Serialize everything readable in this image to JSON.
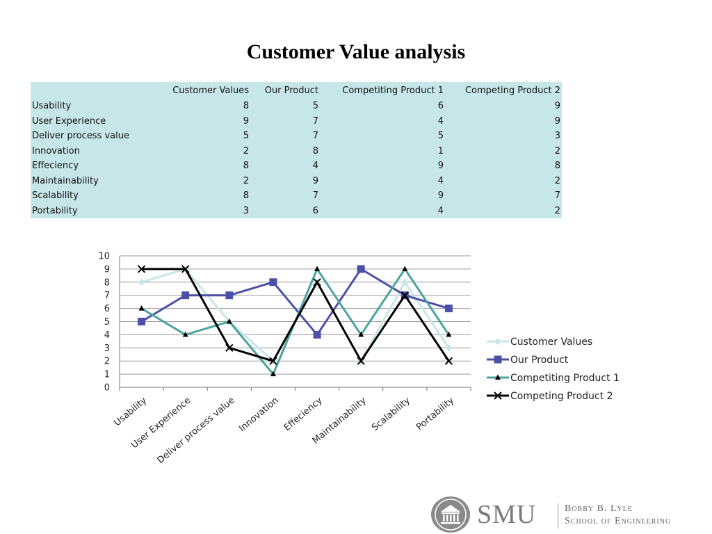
{
  "title": "Customer Value analysis",
  "table": {
    "columns": [
      "",
      "Customer Values",
      "Our Product",
      "Competiting Product 1",
      "Competing Product 2"
    ],
    "rows": [
      [
        "Usability",
        "8",
        "5",
        "6",
        "9"
      ],
      [
        "User Experience",
        "9",
        "7",
        "4",
        "9"
      ],
      [
        "Deliver process value",
        "5",
        "7",
        "5",
        "3"
      ],
      [
        "Innovation",
        "2",
        "8",
        "1",
        "2"
      ],
      [
        "Effeciency",
        "8",
        "4",
        "9",
        "8"
      ],
      [
        "Maintainability",
        "2",
        "9",
        "4",
        "2"
      ],
      [
        "Scalability",
        "8",
        "7",
        "9",
        "7"
      ],
      [
        "Portability",
        "3",
        "6",
        "4",
        "2"
      ]
    ]
  },
  "chart_data": {
    "type": "line",
    "categories": [
      "Usability",
      "User Experience",
      "Deliver process value",
      "Innovation",
      "Effeciency",
      "Maintainability",
      "Scalability",
      "Portability"
    ],
    "series": [
      {
        "name": "Customer Values",
        "values": [
          8,
          9,
          5,
          2,
          8,
          2,
          8,
          3
        ],
        "color": "#c8e6e8",
        "marker": "diamond"
      },
      {
        "name": "Our Product",
        "values": [
          5,
          7,
          7,
          8,
          4,
          9,
          7,
          6
        ],
        "color": "#4b4fa8",
        "marker": "square"
      },
      {
        "name": "Competiting Product 1",
        "values": [
          6,
          4,
          5,
          1,
          9,
          4,
          9,
          4
        ],
        "color": "#4aa3a0",
        "marker": "triangle"
      },
      {
        "name": "Competing Product 2",
        "values": [
          9,
          9,
          3,
          2,
          8,
          2,
          7,
          2
        ],
        "color": "#000000",
        "marker": "x"
      }
    ],
    "y_ticks": [
      "0",
      "1",
      "2",
      "3",
      "4",
      "5",
      "6",
      "7",
      "8",
      "9",
      "10"
    ],
    "ylim": [
      0,
      10
    ],
    "grid": true,
    "legend_position": "right"
  },
  "logo": {
    "name": "SMU",
    "line1": "Bobby B. Lyle",
    "line2": "School of Engineering"
  }
}
